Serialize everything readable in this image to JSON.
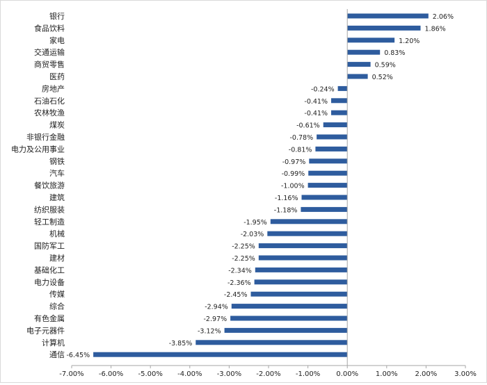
{
  "chart_data": {
    "type": "bar",
    "orientation": "horizontal",
    "title": "",
    "xlabel": "",
    "ylabel": "",
    "xlim": [
      -7,
      3
    ],
    "grid": false,
    "legend": "none",
    "bar_color": "#2E5C9E",
    "categories": [
      "银行",
      "食品饮料",
      "家电",
      "交通运输",
      "商贸零售",
      "医药",
      "房地产",
      "石油石化",
      "农林牧渔",
      "煤炭",
      "非银行金融",
      "电力及公用事业",
      "钢铁",
      "汽车",
      "餐饮旅游",
      "建筑",
      "纺织服装",
      "轻工制造",
      "机械",
      "国防军工",
      "建材",
      "基础化工",
      "电力设备",
      "传媒",
      "综合",
      "有色金属",
      "电子元器件",
      "计算机",
      "通信"
    ],
    "values": [
      2.06,
      1.86,
      1.2,
      0.83,
      0.59,
      0.52,
      -0.24,
      -0.41,
      -0.41,
      -0.61,
      -0.78,
      -0.81,
      -0.97,
      -0.99,
      -1.0,
      -1.16,
      -1.18,
      -1.95,
      -2.03,
      -2.25,
      -2.25,
      -2.34,
      -2.36,
      -2.45,
      -2.94,
      -2.97,
      -3.12,
      -3.85,
      -6.45
    ],
    "data_labels": [
      "2.06%",
      "1.86%",
      "1.20%",
      "0.83%",
      "0.59%",
      "0.52%",
      "-0.24%",
      "-0.41%",
      "-0.41%",
      "-0.61%",
      "-0.78%",
      "-0.81%",
      "-0.97%",
      "-0.99%",
      "-1.00%",
      "-1.16%",
      "-1.18%",
      "-1.95%",
      "-2.03%",
      "-2.25%",
      "-2.25%",
      "-2.34%",
      "-2.36%",
      "-2.45%",
      "-2.94%",
      "-2.97%",
      "-3.12%",
      "-3.85%",
      "-6.45%"
    ],
    "x_ticks": [
      -7,
      -6,
      -5,
      -4,
      -3,
      -2,
      -1,
      0,
      1,
      2,
      3
    ],
    "x_tick_labels": [
      "-7.00%",
      "-6.00%",
      "-5.00%",
      "-4.00%",
      "-3.00%",
      "-2.00%",
      "-1.00%",
      "0.00%",
      "1.00%",
      "2.00%",
      "3.00%"
    ]
  }
}
